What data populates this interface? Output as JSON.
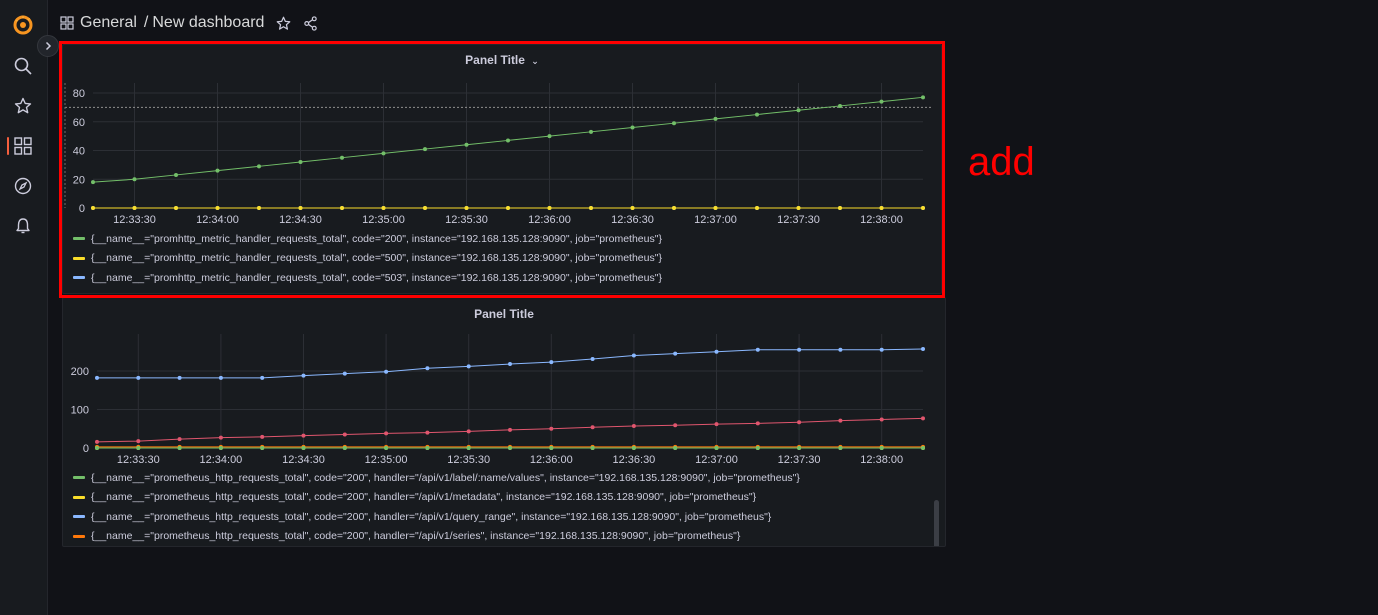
{
  "breadcrumb": {
    "folder": "General",
    "separator": "/",
    "dashboard": "New dashboard"
  },
  "icons": {
    "logo": "grafana-logo",
    "search": "search-icon",
    "starred": "star-icon",
    "dashboards": "dashboards-grid-icon",
    "explore": "compass-icon",
    "alerting": "bell-icon",
    "expand": "chevron-right-icon",
    "star_dashboard": "star-icon",
    "share": "share-icon"
  },
  "annotation": {
    "text": "add",
    "color": "#ff0000"
  },
  "panels": [
    {
      "title": "Panel Title",
      "legend": [
        {
          "label": "{__name__=\"promhttp_metric_handler_requests_total\", code=\"200\", instance=\"192.168.135.128:9090\", job=\"prometheus\"}",
          "color": "#73bf69"
        },
        {
          "label": "{__name__=\"promhttp_metric_handler_requests_total\", code=\"500\", instance=\"192.168.135.128:9090\", job=\"prometheus\"}",
          "color": "#fade2a"
        },
        {
          "label": "{__name__=\"promhttp_metric_handler_requests_total\", code=\"503\", instance=\"192.168.135.128:9090\", job=\"prometheus\"}",
          "color": "#8ab8ff"
        }
      ]
    },
    {
      "title": "Panel Title",
      "legend": [
        {
          "label": "{__name__=\"prometheus_http_requests_total\", code=\"200\", handler=\"/api/v1/label/:name/values\", instance=\"192.168.135.128:9090\", job=\"prometheus\"}",
          "color": "#73bf69"
        },
        {
          "label": "{__name__=\"prometheus_http_requests_total\", code=\"200\", handler=\"/api/v1/metadata\", instance=\"192.168.135.128:9090\", job=\"prometheus\"}",
          "color": "#fade2a"
        },
        {
          "label": "{__name__=\"prometheus_http_requests_total\", code=\"200\", handler=\"/api/v1/query_range\", instance=\"192.168.135.128:9090\", job=\"prometheus\"}",
          "color": "#8ab8ff"
        },
        {
          "label": "{__name__=\"prometheus_http_requests_total\", code=\"200\", handler=\"/api/v1/series\", instance=\"192.168.135.128:9090\", job=\"prometheus\"}",
          "color": "#ff780a"
        }
      ]
    }
  ],
  "chart_data": [
    {
      "type": "line",
      "title": "Panel Title",
      "x_ticks": [
        "12:33:30",
        "12:34:00",
        "12:34:30",
        "12:35:00",
        "12:35:30",
        "12:36:00",
        "12:36:30",
        "12:37:00",
        "12:37:30",
        "12:38:00"
      ],
      "x": [
        "12:33:15",
        "12:33:30",
        "12:33:45",
        "12:34:00",
        "12:34:15",
        "12:34:30",
        "12:34:45",
        "12:35:00",
        "12:35:15",
        "12:35:30",
        "12:35:45",
        "12:36:00",
        "12:36:15",
        "12:36:30",
        "12:36:45",
        "12:37:00",
        "12:37:15",
        "12:37:30",
        "12:37:45",
        "12:38:00",
        "12:38:15"
      ],
      "ylim": [
        0,
        80
      ],
      "y_ticks": [
        0,
        20,
        40,
        60,
        80
      ],
      "threshold": 70,
      "series": [
        {
          "color": "#73bf69",
          "values": [
            18,
            20,
            23,
            26,
            29,
            32,
            35,
            38,
            41,
            44,
            47,
            50,
            53,
            56,
            59,
            62,
            65,
            68,
            71,
            74,
            77
          ]
        },
        {
          "color": "#fade2a",
          "values": [
            0,
            0,
            0,
            0,
            0,
            0,
            0,
            0,
            0,
            0,
            0,
            0,
            0,
            0,
            0,
            0,
            0,
            0,
            0,
            0,
            0
          ]
        },
        {
          "color": "#8ab8ff",
          "values": [
            0,
            0,
            0,
            0,
            0,
            0,
            0,
            0,
            0,
            0,
            0,
            0,
            0,
            0,
            0,
            0,
            0,
            0,
            0,
            0,
            0
          ]
        }
      ]
    },
    {
      "type": "line",
      "title": "Panel Title",
      "x_ticks": [
        "12:33:30",
        "12:34:00",
        "12:34:30",
        "12:35:00",
        "12:35:30",
        "12:36:00",
        "12:36:30",
        "12:37:00",
        "12:37:30",
        "12:38:00"
      ],
      "x": [
        "12:33:15",
        "12:33:30",
        "12:33:45",
        "12:34:00",
        "12:34:15",
        "12:34:30",
        "12:34:45",
        "12:35:00",
        "12:35:15",
        "12:35:30",
        "12:35:45",
        "12:36:00",
        "12:36:15",
        "12:36:30",
        "12:36:45",
        "12:37:00",
        "12:37:15",
        "12:37:30",
        "12:37:45",
        "12:38:00",
        "12:38:15"
      ],
      "ylim": [
        0,
        270
      ],
      "y_ticks": [
        0,
        100,
        200
      ],
      "series": [
        {
          "color": "#73bf69",
          "values": [
            0,
            0,
            0,
            0,
            0,
            0,
            0,
            0,
            0,
            0,
            0,
            0,
            0,
            0,
            0,
            0,
            0,
            0,
            0,
            0,
            0
          ]
        },
        {
          "color": "#fade2a",
          "values": [
            0,
            0,
            0,
            0,
            0,
            0,
            0,
            0,
            0,
            0,
            0,
            0,
            0,
            0,
            0,
            0,
            0,
            0,
            0,
            0,
            0
          ]
        },
        {
          "color": "#8ab8ff",
          "values": [
            182,
            182,
            182,
            182,
            182,
            188,
            193,
            198,
            207,
            212,
            218,
            223,
            231,
            240,
            245,
            250,
            255,
            255,
            255,
            255,
            257
          ]
        },
        {
          "color": "#ff780a",
          "values": [
            3,
            3,
            3,
            3,
            3,
            3,
            3,
            3,
            3,
            3,
            3,
            3,
            3,
            3,
            3,
            3,
            3,
            3,
            3,
            3,
            3
          ]
        },
        {
          "color": "#e0566e",
          "values": [
            16,
            18,
            23,
            27,
            29,
            32,
            35,
            38,
            40,
            43,
            47,
            50,
            54,
            57,
            59,
            62,
            64,
            67,
            71,
            74,
            77
          ]
        }
      ]
    }
  ]
}
